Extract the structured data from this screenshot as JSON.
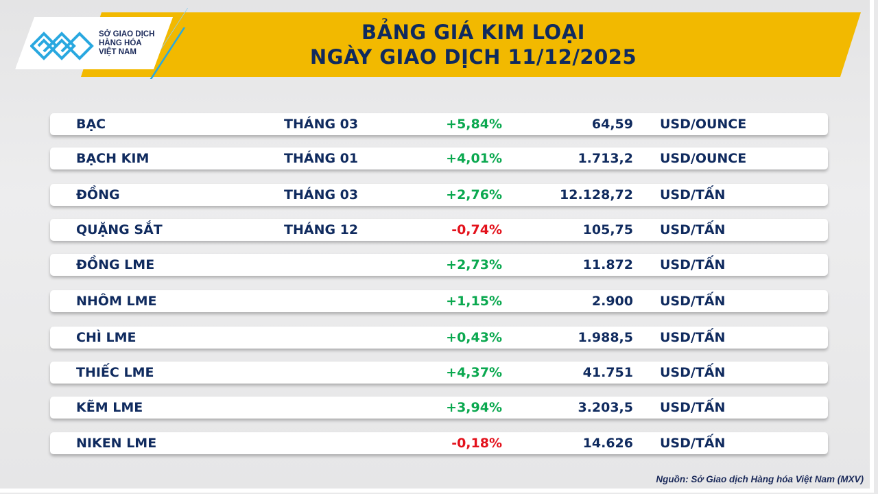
{
  "header": {
    "title_line1": "BẢNG GIÁ KIM LOẠI",
    "title_line2": "NGÀY GIAO DỊCH 11/12/2025",
    "accent_color": "#f2b900"
  },
  "logo": {
    "text": "SỞ GIAO DỊCH HÀNG HÓA VIỆT NAM",
    "line1": "SỞ GIAO DỊCH",
    "line2": "HÀNG HÓA",
    "line3": "VIỆT NAM",
    "color": "#29a8e0"
  },
  "colors": {
    "up": "#0aa84f",
    "down": "#e3111b",
    "text": "#0f2a5e"
  },
  "rows": [
    {
      "name": "BẠC",
      "term": "THÁNG 03",
      "change": "+5,84%",
      "dir": "up",
      "price": "64,59",
      "unit": "USD/OUNCE"
    },
    {
      "name": "BẠCH KIM",
      "term": "THÁNG 01",
      "change": "+4,01%",
      "dir": "up",
      "price": "1.713,2",
      "unit": "USD/OUNCE"
    },
    {
      "name": "ĐỒNG",
      "term": "THÁNG 03",
      "change": "+2,76%",
      "dir": "up",
      "price": "12.128,72",
      "unit": "USD/TẤN"
    },
    {
      "name": "QUẶNG SẮT",
      "term": "THÁNG 12",
      "change": "-0,74%",
      "dir": "down",
      "price": "105,75",
      "unit": "USD/TẤN"
    },
    {
      "name": "ĐỒNG LME",
      "term": "",
      "change": "+2,73%",
      "dir": "up",
      "price": "11.872",
      "unit": "USD/TẤN"
    },
    {
      "name": "NHÔM LME",
      "term": "",
      "change": "+1,15%",
      "dir": "up",
      "price": "2.900",
      "unit": "USD/TẤN"
    },
    {
      "name": "CHÌ LME",
      "term": "",
      "change": "+0,43%",
      "dir": "up",
      "price": "1.988,5",
      "unit": "USD/TẤN"
    },
    {
      "name": "THIẾC LME",
      "term": "",
      "change": "+4,37%",
      "dir": "up",
      "price": "41.751",
      "unit": "USD/TẤN"
    },
    {
      "name": "KẼM LME",
      "term": "",
      "change": "+3,94%",
      "dir": "up",
      "price": "3.203,5",
      "unit": "USD/TẤN"
    },
    {
      "name": "NIKEN LME",
      "term": "",
      "change": "-0,18%",
      "dir": "down",
      "price": "14.626",
      "unit": "USD/TẤN"
    }
  ],
  "footer": {
    "source": "Nguồn: Sở Giao dịch Hàng hóa Việt Nam (MXV)"
  }
}
